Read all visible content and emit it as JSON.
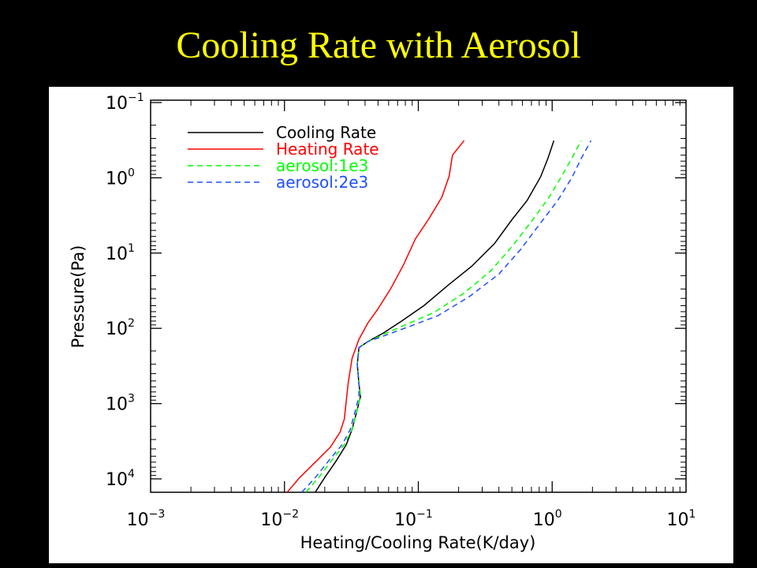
{
  "slide": {
    "title": "Cooling Rate with Aerosol",
    "title_color": "#ffff00",
    "background": "#000000"
  },
  "chart_data": {
    "type": "line",
    "title": "",
    "xlabel": "Heating/Cooling Rate(K/day)",
    "ylabel": "Pressure(Pa)",
    "x_scale": "log",
    "y_scale": "log",
    "y_inverted": true,
    "xlim": [
      0.001,
      10
    ],
    "ylim": [
      15000,
      0.1
    ],
    "x_ticks": [
      {
        "value": 0.001,
        "base": "10",
        "exp": "−3"
      },
      {
        "value": 0.01,
        "base": "10",
        "exp": "−2"
      },
      {
        "value": 0.1,
        "base": "10",
        "exp": "−1"
      },
      {
        "value": 1,
        "base": "10",
        "exp": "0"
      },
      {
        "value": 10,
        "base": "10",
        "exp": "1"
      }
    ],
    "y_ticks": [
      {
        "value": 0.1,
        "base": "10",
        "exp": "−1"
      },
      {
        "value": 1,
        "base": "10",
        "exp": "0"
      },
      {
        "value": 10,
        "base": "10",
        "exp": "1"
      },
      {
        "value": 100,
        "base": "10",
        "exp": "2"
      },
      {
        "value": 1000,
        "base": "10",
        "exp": "3"
      },
      {
        "value": 10000,
        "base": "10",
        "exp": "4"
      }
    ],
    "legend_position": "top-left",
    "series": [
      {
        "name": "Cooling Rate",
        "color": "#000000",
        "dash": "solid",
        "points": [
          [
            0.017,
            15000
          ],
          [
            0.02,
            9600
          ],
          [
            0.024,
            6000
          ],
          [
            0.029,
            3500
          ],
          [
            0.032,
            2200
          ],
          [
            0.035,
            1200
          ],
          [
            0.037,
            800
          ],
          [
            0.036,
            550
          ],
          [
            0.035,
            300
          ],
          [
            0.036,
            180
          ],
          [
            0.042,
            150
          ],
          [
            0.055,
            115
          ],
          [
            0.075,
            80
          ],
          [
            0.11,
            50
          ],
          [
            0.17,
            26
          ],
          [
            0.25,
            15
          ],
          [
            0.37,
            7.5
          ],
          [
            0.5,
            3.6
          ],
          [
            0.65,
            2.0
          ],
          [
            0.82,
            0.97
          ],
          [
            0.93,
            0.55
          ],
          [
            1.03,
            0.32
          ]
        ]
      },
      {
        "name": "Heating Rate",
        "color": "#ff0000",
        "dash": "solid",
        "points": [
          [
            0.0105,
            15000
          ],
          [
            0.013,
            9600
          ],
          [
            0.017,
            6000
          ],
          [
            0.022,
            3800
          ],
          [
            0.026,
            2400
          ],
          [
            0.028,
            1600
          ],
          [
            0.029,
            900
          ],
          [
            0.03,
            520
          ],
          [
            0.032,
            250
          ],
          [
            0.036,
            140
          ],
          [
            0.042,
            85
          ],
          [
            0.05,
            55
          ],
          [
            0.062,
            30
          ],
          [
            0.078,
            14
          ],
          [
            0.095,
            6.5
          ],
          [
            0.12,
            3.5
          ],
          [
            0.15,
            1.8
          ],
          [
            0.17,
            0.95
          ],
          [
            0.18,
            0.5
          ],
          [
            0.22,
            0.32
          ]
        ]
      },
      {
        "name": "aerosol:1e3",
        "color": "#00ff00",
        "dash": "dashed",
        "points": [
          [
            0.0145,
            15000
          ],
          [
            0.018,
            9600
          ],
          [
            0.022,
            6000
          ],
          [
            0.028,
            3500
          ],
          [
            0.032,
            2200
          ],
          [
            0.035,
            1200
          ],
          [
            0.037,
            800
          ],
          [
            0.036,
            550
          ],
          [
            0.035,
            300
          ],
          [
            0.036,
            180
          ],
          [
            0.042,
            150
          ],
          [
            0.055,
            120
          ],
          [
            0.08,
            90
          ],
          [
            0.13,
            62
          ],
          [
            0.22,
            34
          ],
          [
            0.35,
            17
          ],
          [
            0.5,
            8.2
          ],
          [
            0.7,
            3.8
          ],
          [
            0.95,
            1.8
          ],
          [
            1.2,
            0.9
          ],
          [
            1.4,
            0.55
          ],
          [
            1.65,
            0.32
          ]
        ]
      },
      {
        "name": "aerosol:2e3",
        "color": "#1f4fff",
        "dash": "dashed",
        "points": [
          [
            0.0135,
            15000
          ],
          [
            0.017,
            9600
          ],
          [
            0.021,
            6000
          ],
          [
            0.027,
            3500
          ],
          [
            0.031,
            2200
          ],
          [
            0.034,
            1200
          ],
          [
            0.036,
            800
          ],
          [
            0.036,
            550
          ],
          [
            0.035,
            300
          ],
          [
            0.036,
            180
          ],
          [
            0.042,
            150
          ],
          [
            0.056,
            125
          ],
          [
            0.085,
            95
          ],
          [
            0.14,
            68
          ],
          [
            0.24,
            38
          ],
          [
            0.4,
            19
          ],
          [
            0.58,
            9.0
          ],
          [
            0.8,
            4.2
          ],
          [
            1.1,
            2.0
          ],
          [
            1.4,
            1.0
          ],
          [
            1.65,
            0.55
          ],
          [
            1.95,
            0.32
          ]
        ]
      }
    ]
  }
}
